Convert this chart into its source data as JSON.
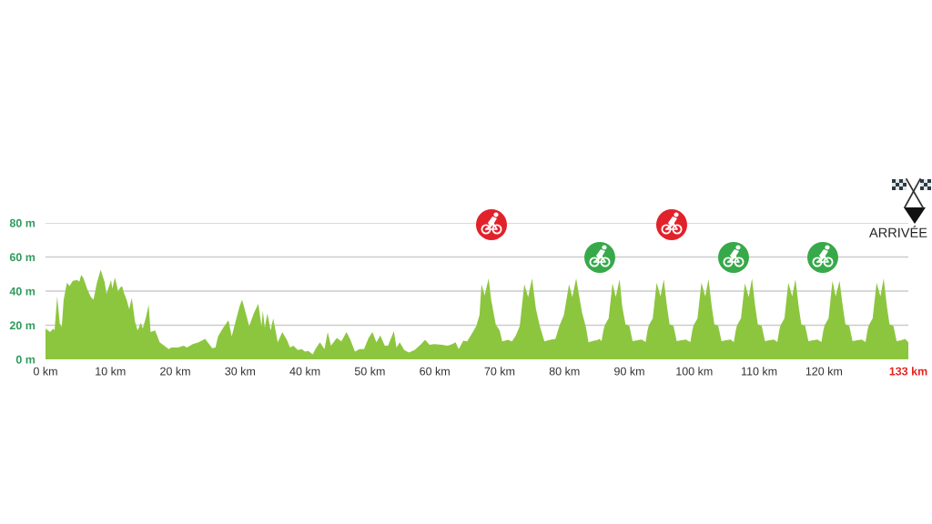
{
  "chart_data": {
    "type": "area",
    "x": [
      0,
      0.4,
      0.7,
      1.2,
      1.4,
      1.8,
      2.2,
      2.5,
      2.8,
      3.3,
      3.7,
      4.2,
      4.9,
      5.2,
      5.5,
      5.8,
      6.5,
      7.0,
      7.4,
      7.9,
      8.5,
      9.1,
      9.4,
      9.9,
      10.1,
      10.3,
      10.7,
      11.2,
      11.5,
      11.8,
      12.1,
      12.5,
      12.9,
      13.3,
      13.8,
      14.2,
      14.7,
      15.0,
      15.5,
      15.9,
      16.2,
      16.9,
      17.6,
      18.3,
      19.0,
      19.4,
      20.4,
      21.3,
      21.8,
      22.7,
      23.6,
      24.6,
      25.0,
      25.7,
      26.2,
      26.6,
      27.3,
      28.2,
      28.7,
      29.9,
      30.3,
      30.7,
      31.4,
      32.1,
      32.8,
      33.3,
      33.5,
      33.8,
      34.2,
      34.7,
      35.1,
      35.8,
      36.5,
      37.2,
      37.7,
      38.2,
      38.9,
      39.5,
      40.0,
      40.5,
      41.2,
      41.6,
      42.3,
      43.0,
      43.5,
      44.0,
      44.9,
      45.6,
      46.4,
      47.0,
      47.7,
      48.4,
      49.1,
      49.8,
      50.4,
      51.0,
      51.6,
      52.3,
      52.8,
      53.7,
      54.1,
      54.6,
      55.3,
      56.0,
      56.9,
      57.9,
      58.5,
      59.2,
      59.9,
      61.1,
      62.0,
      62.7,
      63.2,
      63.7,
      64.4,
      65.0,
      65.7,
      66.4,
      66.9,
      67.2,
      67.7,
      68.3,
      68.7,
      69.4,
      70.0,
      70.4,
      71.3,
      71.9,
      72.5,
      73.1,
      73.8,
      74.4,
      75.0,
      75.6,
      76.2,
      76.9,
      77.8,
      78.6,
      79.2,
      79.9,
      80.7,
      81.2,
      81.8,
      82.7,
      83.3,
      83.7,
      84.5,
      85.0,
      85.4,
      85.7,
      86.0,
      86.2,
      86.8,
      87.4,
      87.9,
      88.5,
      88.9,
      89.4,
      90.0,
      90.5,
      91.2,
      91.9,
      92.5,
      92.8,
      93.0,
      93.6,
      94.2,
      94.8,
      95.3,
      95.8,
      96.2,
      96.8,
      97.3,
      98.0,
      98.7,
      99.4,
      99.7,
      99.9,
      100.5,
      101.1,
      101.7,
      102.2,
      102.7,
      103.1,
      103.7,
      104.2,
      104.9,
      105.6,
      106.1,
      106.4,
      106.6,
      107.2,
      107.8,
      108.4,
      108.9,
      109.4,
      109.8,
      110.4,
      110.9,
      111.6,
      112.3,
      112.8,
      113.1,
      113.3,
      113.9,
      114.5,
      115.1,
      115.6,
      116.1,
      116.5,
      117.1,
      117.6,
      118.3,
      119.0,
      119.6,
      119.9,
      120.1,
      120.7,
      121.3,
      121.8,
      122.4,
      122.9,
      123.3,
      123.9,
      124.4,
      125.1,
      125.8,
      126.4,
      126.7,
      126.9,
      127.5,
      128.1,
      128.7,
      129.2,
      129.7,
      130.1,
      130.7,
      131.2,
      131.9,
      132.5,
      133
    ],
    "series": [
      {
        "color": "#8cc63f",
        "values": [
          18,
          17,
          16,
          18,
          17,
          37,
          21,
          19,
          35,
          45,
          43,
          46,
          46.5,
          45.5,
          49.5,
          48,
          40.5,
          36.5,
          35,
          44.5,
          52.5,
          45.5,
          38.5,
          44,
          46.5,
          41.5,
          48,
          40,
          42,
          43,
          39,
          35,
          29.5,
          36,
          22,
          17,
          21.5,
          18,
          25,
          32,
          16,
          17,
          10,
          8,
          6,
          7,
          7,
          8,
          7,
          9,
          10,
          12,
          10,
          6.5,
          7,
          13.5,
          18,
          23,
          13.5,
          31,
          35,
          29.5,
          19.5,
          27,
          32.5,
          19.5,
          28.5,
          18.5,
          27,
          17,
          24,
          10,
          16,
          11.5,
          7,
          8,
          5.5,
          6,
          4.5,
          5,
          3,
          6,
          10,
          6,
          16,
          8,
          12.5,
          10.5,
          16,
          11.5,
          4.5,
          6,
          6,
          12.5,
          16,
          10,
          14,
          8,
          8,
          16.5,
          7,
          10,
          5.5,
          4,
          5.5,
          9,
          11.5,
          8.5,
          9,
          8.5,
          8,
          9,
          10,
          6,
          11,
          10.5,
          15,
          19.5,
          26,
          44,
          37.5,
          47.5,
          35,
          20.5,
          17,
          10.5,
          11.5,
          10.5,
          14,
          19.5,
          44,
          36.5,
          47.5,
          29.5,
          19.5,
          10.5,
          11.5,
          12,
          19.5,
          26,
          44,
          36.5,
          47.5,
          27.5,
          19,
          10,
          11,
          11.2,
          12,
          10.7,
          17,
          20,
          24,
          44.6,
          36.6,
          47,
          31,
          20.5,
          19.6,
          10.7,
          11.2,
          11.6,
          10.2,
          17,
          20,
          24,
          45,
          37,
          47,
          31,
          20.5,
          19.6,
          10.7,
          11.2,
          11.6,
          10.2,
          17,
          20,
          24,
          45,
          37,
          47,
          31,
          20.5,
          19.6,
          10.7,
          11.2,
          11.6,
          10.2,
          17,
          20,
          24,
          44.6,
          36.6,
          47.5,
          31,
          20.5,
          19.6,
          10.7,
          11.2,
          11.6,
          10.2,
          17,
          20,
          24,
          45,
          37,
          47,
          31,
          20.5,
          19.6,
          10.7,
          11.2,
          11.6,
          10.2,
          17,
          20,
          24,
          46,
          37,
          46,
          31,
          20.5,
          19.6,
          10.7,
          11.2,
          11.6,
          10.2,
          17,
          20,
          24,
          45,
          37,
          47.5,
          31,
          20.5,
          19.6,
          10.7,
          11.2,
          12,
          10
        ]
      }
    ],
    "xlim": [
      0,
      133
    ],
    "xticks": [
      {
        "value": 0,
        "label": "0 km"
      },
      {
        "value": 10,
        "label": "10 km"
      },
      {
        "value": 20,
        "label": "20 km"
      },
      {
        "value": 30,
        "label": "30 km"
      },
      {
        "value": 40,
        "label": "40 km"
      },
      {
        "value": 50,
        "label": "50 km"
      },
      {
        "value": 60,
        "label": "60 km"
      },
      {
        "value": 70,
        "label": "70 km"
      },
      {
        "value": 80,
        "label": "80 km"
      },
      {
        "value": 90,
        "label": "90 km"
      },
      {
        "value": 100,
        "label": "100 km"
      },
      {
        "value": 110,
        "label": "110 km"
      },
      {
        "value": 120,
        "label": "120 km"
      },
      {
        "value": 133,
        "label": "133 km"
      }
    ],
    "ylim": [
      0,
      80
    ],
    "yticks": [
      {
        "value": 0,
        "label": "0 m"
      },
      {
        "value": 20,
        "label": "20 m"
      },
      {
        "value": 40,
        "label": "40 m"
      },
      {
        "value": 60,
        "label": "60 m"
      },
      {
        "value": 80,
        "label": "80 m"
      }
    ],
    "grid": "y",
    "annotations": [
      "ARRIVÉE"
    ]
  }
}
